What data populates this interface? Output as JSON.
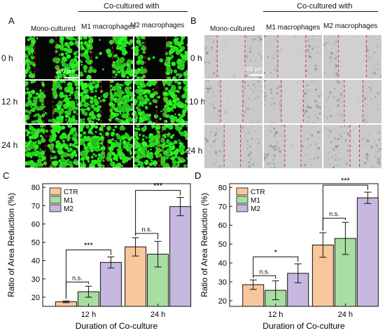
{
  "panels": {
    "A": {
      "letter": "A",
      "group_title": "Co-cultured with",
      "columns": [
        "Mono-cultured",
        "M1 macrophages",
        "M2 macrophages"
      ],
      "rows": [
        "0 h",
        "12 h",
        "24 h"
      ],
      "scale_bar": "200 μm"
    },
    "B": {
      "letter": "B",
      "group_title": "Co-cultured with",
      "columns": [
        "Mono-cultured",
        "M1 macrophages",
        "M2 macrophages"
      ],
      "rows": [
        "0 h",
        "10 h",
        "24 h"
      ],
      "scale_bar": "200 μm"
    }
  },
  "chart_data": [
    {
      "letter": "C",
      "type": "bar",
      "categories": [
        "12 h",
        "24 h"
      ],
      "series": [
        {
          "name": "CTR",
          "values": [
            17.5,
            47.5
          ],
          "errors": [
            0.5,
            5
          ],
          "color": "#f8c79b"
        },
        {
          "name": "M1",
          "values": [
            23,
            43.5
          ],
          "errors": [
            3,
            7
          ],
          "color": "#a8dea2"
        },
        {
          "name": "M2",
          "values": [
            39,
            69.5
          ],
          "errors": [
            3,
            5
          ],
          "color": "#c6b8df"
        }
      ],
      "significance": [
        {
          "category": "12 h",
          "pair": [
            "CTR",
            "M1"
          ],
          "label": "n.s."
        },
        {
          "category": "12 h",
          "pair": [
            "CTR",
            "M2"
          ],
          "label": "***"
        },
        {
          "category": "24 h",
          "pair": [
            "CTR",
            "M1"
          ],
          "label": "n.s."
        },
        {
          "category": "24 h",
          "pair": [
            "CTR",
            "M2"
          ],
          "label": "***"
        }
      ],
      "xlabel": "Duration of Co-culture",
      "ylabel": "Ratio of Area Reduction (%)",
      "ylim": [
        15,
        82
      ],
      "yticks": [
        "20",
        "30",
        "40",
        "50",
        "60",
        "70",
        "80"
      ],
      "legend": "top-left"
    },
    {
      "letter": "D",
      "type": "bar",
      "categories": [
        "12 h",
        "24 h"
      ],
      "series": [
        {
          "name": "CTR",
          "values": [
            28.5,
            49.5
          ],
          "errors": [
            2.5,
            6.5
          ],
          "color": "#f8c79b"
        },
        {
          "name": "M1",
          "values": [
            25.5,
            53
          ],
          "errors": [
            5,
            8.5
          ],
          "color": "#a8dea2"
        },
        {
          "name": "M2",
          "values": [
            34.5,
            74.5
          ],
          "errors": [
            5,
            3
          ],
          "color": "#c6b8df"
        }
      ],
      "significance": [
        {
          "category": "12 h",
          "pair": [
            "CTR",
            "M1"
          ],
          "label": "n.s."
        },
        {
          "category": "12 h",
          "pair": [
            "CTR",
            "M2"
          ],
          "label": "*"
        },
        {
          "category": "24 h",
          "pair": [
            "CTR",
            "M1"
          ],
          "label": "n.s."
        },
        {
          "category": "24 h",
          "pair": [
            "CTR",
            "M2"
          ],
          "label": "***"
        }
      ],
      "xlabel": "Duration of Co-culture",
      "ylabel": "Ratio of Area Reduction (%)",
      "ylim": [
        17,
        82
      ],
      "yticks": [
        "20",
        "30",
        "40",
        "50",
        "60",
        "70",
        "80"
      ],
      "legend": "top-left"
    }
  ]
}
